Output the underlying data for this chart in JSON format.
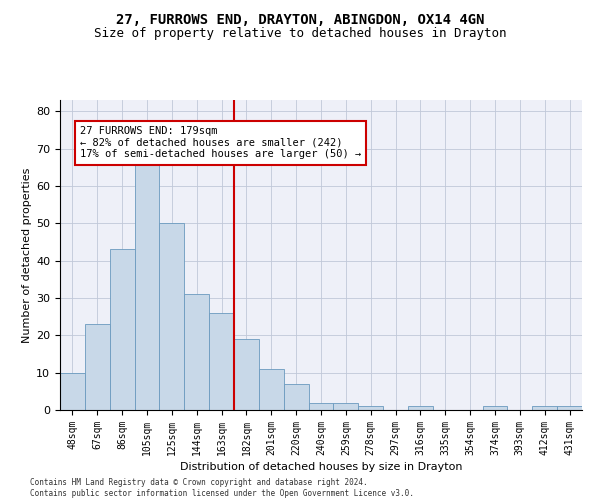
{
  "title_line1": "27, FURROWS END, DRAYTON, ABINGDON, OX14 4GN",
  "title_line2": "Size of property relative to detached houses in Drayton",
  "xlabel": "Distribution of detached houses by size in Drayton",
  "ylabel": "Number of detached properties",
  "footnote": "Contains HM Land Registry data © Crown copyright and database right 2024.\nContains public sector information licensed under the Open Government Licence v3.0.",
  "bar_labels": [
    "48sqm",
    "67sqm",
    "86sqm",
    "105sqm",
    "125sqm",
    "144sqm",
    "163sqm",
    "182sqm",
    "201sqm",
    "220sqm",
    "240sqm",
    "259sqm",
    "278sqm",
    "297sqm",
    "316sqm",
    "335sqm",
    "354sqm",
    "374sqm",
    "393sqm",
    "412sqm",
    "431sqm"
  ],
  "bar_values": [
    10,
    23,
    43,
    66,
    50,
    31,
    26,
    19,
    11,
    7,
    2,
    2,
    1,
    0,
    1,
    0,
    0,
    1,
    0,
    1,
    1
  ],
  "bar_color": "#c8d8e8",
  "bar_edge_color": "#6a9abf",
  "vline_index": 7,
  "annotation_text": "27 FURROWS END: 179sqm\n← 82% of detached houses are smaller (242)\n17% of semi-detached houses are larger (50) →",
  "vline_color": "#cc0000",
  "annotation_box_color": "#cc0000",
  "ylim_max": 83,
  "yticks": [
    0,
    10,
    20,
    30,
    40,
    50,
    60,
    70,
    80
  ],
  "grid_color": "#c0c8d8",
  "bg_color": "#eef0f8",
  "title1_fontsize": 10,
  "title2_fontsize": 9,
  "ylabel_fontsize": 8,
  "xlabel_fontsize": 8,
  "ytick_fontsize": 8,
  "xtick_fontsize": 7,
  "annotation_fontsize": 7.5,
  "footnote_fontsize": 5.5
}
